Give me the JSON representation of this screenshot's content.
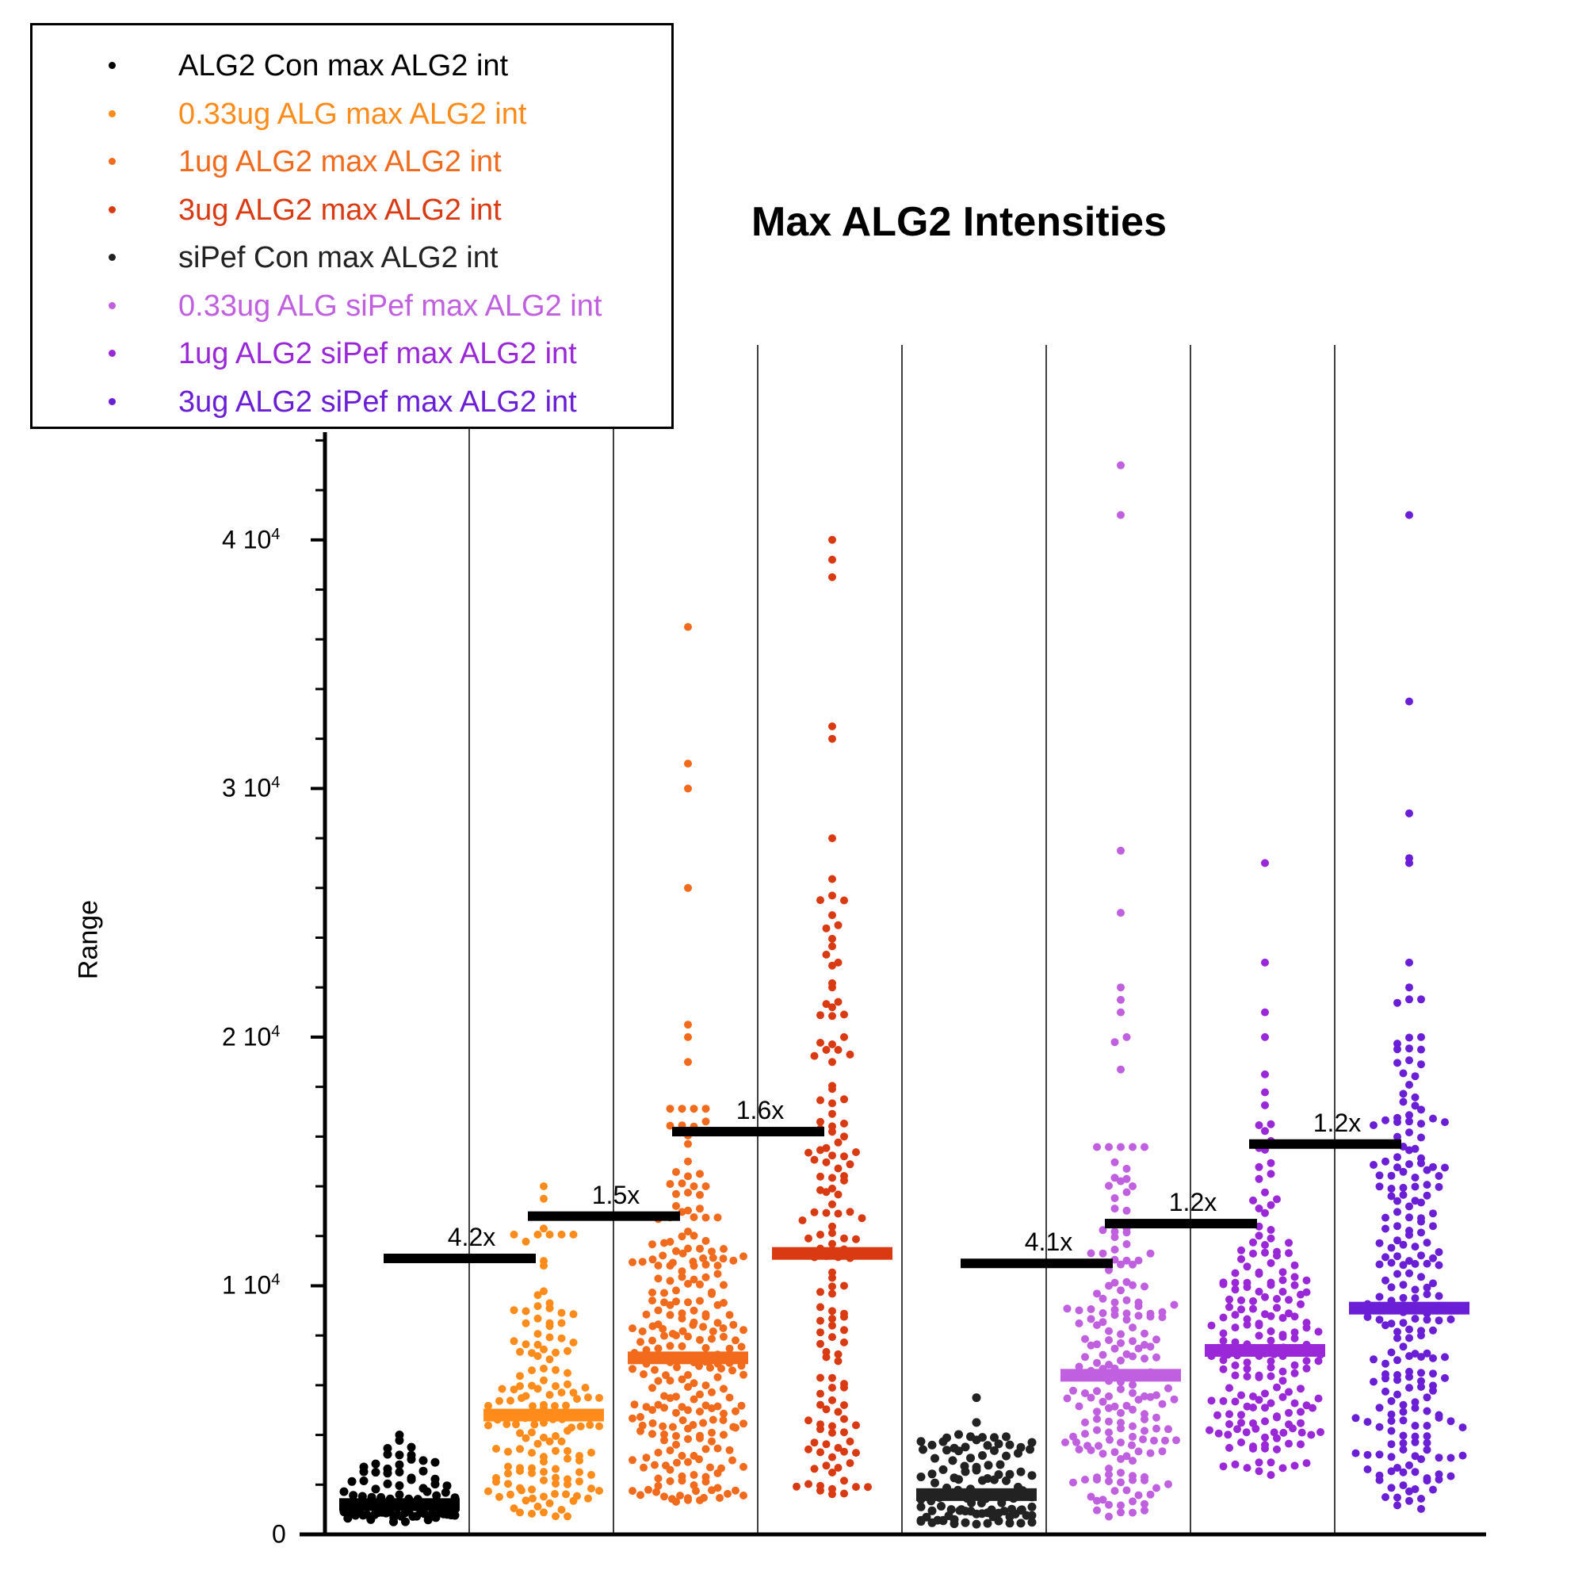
{
  "chart_data": {
    "type": "scatter",
    "title": "Max ALG2 Intensities",
    "ylabel": "Range",
    "ylim": [
      0,
      48000
    ],
    "y_ticks": [
      {
        "value": 0,
        "label": "0",
        "exp": ""
      },
      {
        "value": 10000,
        "label": "1 10",
        "exp": "4"
      },
      {
        "value": 20000,
        "label": "2 10",
        "exp": "4"
      },
      {
        "value": 30000,
        "label": "3 10",
        "exp": "4"
      },
      {
        "value": 40000,
        "label": "4 10",
        "exp": "4"
      }
    ],
    "legend_position": "top-left",
    "series": [
      {
        "name": "ALG2 Con max ALG2 int",
        "color": "#000000",
        "n": 90,
        "median": 1200,
        "min": 500,
        "max": 4000,
        "outliers": [
          2900,
          4000
        ]
      },
      {
        "name": "0.33ug ALG max ALG2 int",
        "color": "#FF8C1A",
        "n": 150,
        "median": 4800,
        "min": 700,
        "max": 14000,
        "outliers": [
          9300,
          11000,
          12300,
          12800,
          13500,
          14000
        ]
      },
      {
        "name": "1ug ALG2 max ALG2 int",
        "color": "#F26A1B",
        "n": 260,
        "median": 7100,
        "min": 1300,
        "max": 36500,
        "outliers": [
          14000,
          14500,
          15000,
          19000,
          20000,
          20500,
          26000,
          30000,
          31000,
          36500
        ]
      },
      {
        "name": "3ug ALG2 max ALG2 int",
        "color": "#D93A12",
        "n": 150,
        "median": 11300,
        "min": 1600,
        "max": 40000,
        "outliers": [
          16000,
          17500,
          19000,
          20000,
          22000,
          23000,
          24500,
          25500,
          28000,
          32000,
          32500,
          38500,
          39200,
          40000
        ]
      },
      {
        "name": "siPef Con max ALG2 int",
        "color": "#222222",
        "n": 110,
        "median": 1600,
        "min": 400,
        "max": 5500,
        "outliers": [
          3500,
          3700,
          5500
        ]
      },
      {
        "name": "0.33ug ALG siPef max ALG2 int",
        "color": "#C060E0",
        "n": 200,
        "median": 6400,
        "min": 700,
        "max": 43000,
        "outliers": [
          14000,
          18700,
          19800,
          20000,
          21000,
          21500,
          22000,
          25000,
          27500,
          41000,
          43000
        ]
      },
      {
        "name": "1ug ALG2 siPef max ALG2 int",
        "color": "#9A28D8",
        "n": 200,
        "median": 7400,
        "min": 2200,
        "max": 27000,
        "outliers": [
          16500,
          18500,
          20000,
          21000,
          23000,
          27000
        ]
      },
      {
        "name": "3ug ALG2 siPef max ALG2 int",
        "color": "#6A1ED6",
        "n": 230,
        "median": 9100,
        "min": 1000,
        "max": 41000,
        "outliers": [
          19500,
          20000,
          22000,
          23000,
          27000,
          27200,
          29000,
          33500,
          41000
        ]
      }
    ],
    "fold_changes": [
      {
        "label": "4.2x",
        "from": 0,
        "to": 1,
        "y": 11100
      },
      {
        "label": "1.5x",
        "from": 1,
        "to": 2,
        "y": 12800
      },
      {
        "label": "1.6x",
        "from": 2,
        "to": 3,
        "y": 16200
      },
      {
        "label": "4.1x",
        "from": 4,
        "to": 5,
        "y": 10900
      },
      {
        "label": "1.2x",
        "from": 5,
        "to": 6,
        "y": 12500
      },
      {
        "label": "1.2x",
        "from": 6,
        "to": 7,
        "y": 15700
      }
    ]
  }
}
